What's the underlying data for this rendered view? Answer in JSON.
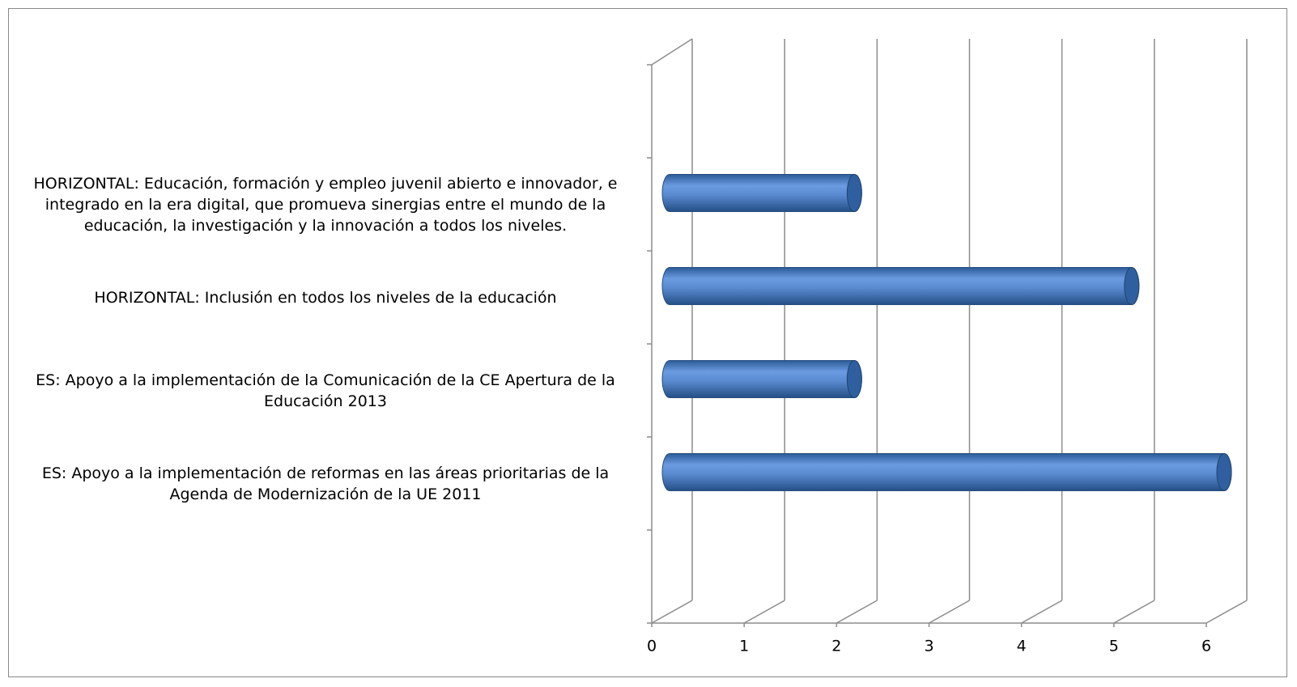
{
  "chart_data": {
    "type": "bar3d",
    "categories": [
      null,
      "HORIZONTAL: Educación, formación y empleo juvenil abierto e innovador, e integrado en la era digital, que promueva sinergias entre el mundo de la educación, la investigación y la innovación a todos los niveles.",
      "HORIZONTAL: Inclusión en todos los niveles de la educación",
      "ES: Apoyo a la implementación de la Comunicación de la CE Apertura de la Educación 2013",
      "ES: Apoyo a la implementación de reformas en las áreas prioritarias de la Agenda de Modernización de la UE 2011",
      null
    ],
    "values": [
      null,
      2,
      5,
      2,
      6,
      null
    ],
    "color": "#4f81bd",
    "xlim": [
      0,
      6
    ],
    "xticks": [
      0,
      1,
      2,
      3,
      4,
      5,
      6
    ],
    "grid": true
  }
}
